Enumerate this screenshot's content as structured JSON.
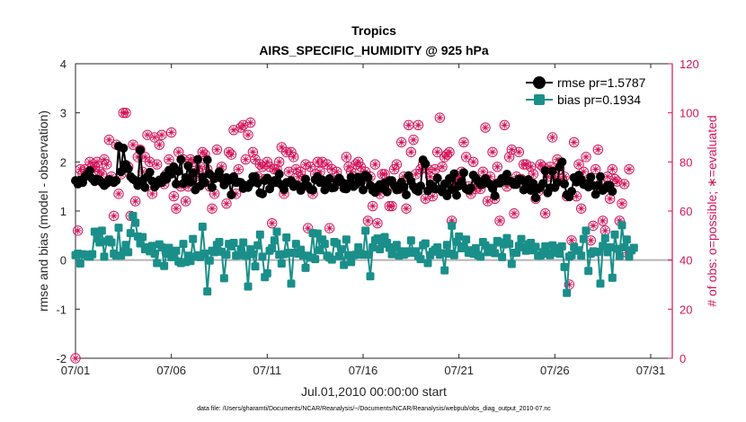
{
  "chart_data": {
    "type": "line",
    "title": "Tropics",
    "subtitle": "AIRS_SPECIFIC_HUMIDITY @ 925 hPa",
    "xlabel": "Jul.01,2010 00:00:00 start",
    "ylabel": "rmse and bias (model - observation)",
    "ylabel_right": "# of obs: o=possible; ∗=evaluated",
    "footer": "data file: /Users/gharamti/Documents/NCAR/Reanalysis/~/Documents/NCAR/Reanalysis/webpub/obs_diag_output_2010-07.nc",
    "x_range": [
      0,
      31.125
    ],
    "ylim": [
      -2,
      4
    ],
    "ylim_right": [
      0,
      120
    ],
    "x_ticks": [
      0,
      5,
      10,
      15,
      20,
      25,
      30
    ],
    "x_tick_labels": [
      "07/01",
      "07/06",
      "07/11",
      "07/16",
      "07/21",
      "07/26",
      "07/31"
    ],
    "y_ticks": [
      -2,
      -1,
      0,
      1,
      2,
      3,
      4
    ],
    "y_tick_labels": [
      "-2",
      "-1",
      "0",
      "1",
      "2",
      "3",
      "4"
    ],
    "y_ticks_right": [
      0,
      20,
      40,
      60,
      80,
      100,
      120
    ],
    "y_tick_labels_right": [
      "0",
      "20",
      "40",
      "60",
      "80",
      "100",
      "120"
    ],
    "x_step_days": 0.125,
    "colors": {
      "rmse": "#000000",
      "bias": "#1a8f8a",
      "obs": "#d4145a",
      "zero_line": "#b5b5b5"
    },
    "series": [
      {
        "name": "rmse pr=1.5787",
        "axis": "left",
        "values": [
          1.62,
          1.55,
          1.63,
          1.58,
          1.7,
          1.75,
          1.82,
          1.66,
          1.6,
          1.65,
          1.63,
          1.58,
          1.52,
          1.56,
          1.64,
          1.61,
          1.58,
          1.62,
          2.32,
          1.8,
          2.28,
          1.95,
          1.86,
          1.7,
          1.65,
          1.62,
          1.52,
          2.24,
          1.62,
          1.48,
          1.7,
          1.79,
          1.61,
          1.49,
          1.55,
          1.63,
          1.58,
          1.71,
          1.65,
          1.83,
          1.75,
          1.9,
          1.55,
          1.81,
          2.05,
          1.56,
          1.68,
          1.92,
          1.59,
          1.78,
          1.43,
          2.05,
          1.51,
          1.69,
          1.58,
          2.04,
          1.75,
          1.48,
          1.66,
          1.71,
          1.8,
          1.66,
          1.53,
          1.68,
          1.62,
          1.33,
          1.7,
          1.58,
          1.59,
          1.58,
          1.46,
          1.52,
          1.48,
          1.56,
          1.7,
          1.7,
          1.57,
          1.37,
          1.35,
          1.62,
          1.67,
          1.45,
          1.56,
          1.62,
          1.58,
          1.75,
          1.53,
          1.44,
          1.58,
          1.58,
          1.62,
          1.5,
          1.54,
          1.51,
          1.42,
          1.5,
          1.65,
          1.51,
          1.44,
          1.43,
          1.64,
          1.7,
          1.58,
          1.63,
          1.43,
          1.57,
          1.66,
          1.47,
          1.48,
          1.59,
          1.67,
          1.59,
          1.46,
          1.45,
          1.56,
          1.69,
          1.5,
          1.54,
          1.69,
          1.6,
          1.43,
          1.73,
          1.68,
          1.52,
          1.42,
          1.38,
          1.49,
          1.54,
          1.46,
          1.57,
          1.39,
          1.62,
          1.62,
          1.52,
          1.43,
          1.45,
          1.59,
          1.49,
          1.33,
          1.72,
          1.61,
          1.5,
          1.43,
          1.4,
          1.51,
          2.04,
          1.96,
          1.41,
          1.55,
          1.51,
          1.45,
          1.67,
          1.44,
          1.39,
          1.55,
          1.31,
          1.66,
          1.44,
          1.76,
          1.32,
          1.51,
          1.6,
          1.78,
          1.45,
          1.42,
          1.47,
          1.73,
          1.67,
          1.61,
          1.54,
          1.55,
          1.66,
          1.58,
          1.54,
          1.46,
          1.31,
          1.57,
          1.57,
          1.66,
          1.61,
          1.75,
          1.61,
          1.6,
          1.54,
          1.54,
          1.65,
          1.64,
          1.43,
          1.57,
          1.64,
          1.42,
          1.56,
          1.27,
          1.45,
          1.48,
          1.56,
          1.82,
          1.37,
          1.47,
          1.81,
          1.48,
          1.58,
          1.9,
          2.0,
          1.55,
          1.33,
          1.29,
          1.4,
          1.68,
          1.59,
          1.73,
          1.64,
          1.54,
          1.55,
          1.49,
          1.69,
          1.52,
          1.34,
          1.52,
          1.7,
          1.42,
          1.46,
          1.52,
          1.52,
          1.4
        ]
      },
      {
        "name": "bias pr=0.1934",
        "axis": "left",
        "values": [
          0.1,
          0.13,
          -0.07,
          0.12,
          0.11,
          0.08,
          0.07,
          0.12,
          0.58,
          0.44,
          0.36,
          0.6,
          0.07,
          0.38,
          0.42,
          0.36,
          0.13,
          0.09,
          0.66,
          0.09,
          0.18,
          0.31,
          0.16,
          0.55,
          0.9,
          0.76,
          0.48,
          0.34,
          0.47,
          0.22,
          0.26,
          0.18,
          0.29,
          0.13,
          -0.06,
          0.32,
          0.26,
          -0.12,
          0.13,
          0.25,
          0.06,
          0.1,
          0.19,
          -0.03,
          -0.06,
          0.33,
          -0.04,
          0.09,
          -0.02,
          0.43,
          0.07,
          0.1,
          0.06,
          0.68,
          0.13,
          -0.64,
          -0.01,
          0.19,
          0.16,
          0.31,
          0.37,
          0.17,
          -0.37,
          0.11,
          0.33,
          0.28,
          0.35,
          0.09,
          0.1,
          0.22,
          0.36,
          0.09,
          -0.54,
          0.22,
          0.12,
          -0.13,
          0.3,
          0.52,
          0.07,
          -0.35,
          -0.27,
          0.19,
          0.24,
          0.4,
          0.58,
          0.11,
          -0.07,
          0.12,
          0.46,
          0.15,
          -0.48,
          0.15,
          0.33,
          0.13,
          0.21,
          0.09,
          -0.16,
          0.09,
          0.05,
          0.55,
          0.02,
          0.54,
          0.2,
          0.42,
          0.33,
          0.09,
          0.05,
          0.01,
          0.37,
          0.34,
          0.08,
          0.22,
          -0.1,
          0.42,
          0.1,
          -0.04,
          0.1,
          0.11,
          0.26,
          0.13,
          0.11,
          0.6,
          0.11,
          -0.33,
          0.26,
          0.4,
          0.44,
          0.22,
          0.33,
          0.47,
          0.35,
          0.25,
          0.12,
          0.26,
          0.31,
          0.09,
          0.18,
          0.11,
          0.14,
          0.18,
          0.4,
          0.15,
          0.18,
          0.08,
          0.02,
          0.3,
          0.34,
          -0.06,
          0.1,
          0.17,
          0.21,
          0.26,
          0.11,
          0.14,
          -0.21,
          0.31,
          0.13,
          0.7,
          0.1,
          0.37,
          0.48,
          0.24,
          0.28,
          0.42,
          0.15,
          0.2,
          0.13,
          0.24,
          0.1,
          0.07,
          0.37,
          0.3,
          0.16,
          0.18,
          0.25,
          0.14,
          0.39,
          0.36,
          0.06,
          0.32,
          0.45,
          0.33,
          -0.08,
          0.15,
          0.15,
          0.29,
          0.43,
          0.26,
          0.19,
          0.32,
          0.35,
          0.2,
          0.27,
          0.09,
          0.09,
          0.16,
          0.28,
          0.13,
          0.1,
          0.3,
          0.15,
          0.25,
          0.13,
          0.28,
          -0.14,
          -0.67,
          0.07,
          0.1,
          0.27,
          0.19,
          0.2,
          0.09,
          0.43,
          0.6,
          -0.22,
          0.13,
          0.18,
          0.16,
          0.17,
          -0.48,
          0.29,
          0.45,
          0.16,
          0.26,
          -0.36,
          0.52,
          0.23,
          0.08,
          0.71,
          0.26,
          0.42,
          0.07,
          0.2,
          0.25
        ]
      },
      {
        "name": "possible",
        "axis": "right",
        "marker": "circle",
        "values": [
          0,
          52,
          77,
          75,
          77,
          75,
          80,
          78,
          78,
          80,
          76,
          75,
          81,
          79,
          89,
          74,
          58,
          87,
          67,
          75,
          100,
          100,
          78,
          58,
          87,
          64,
          82,
          85,
          76,
          82,
          91,
          80,
          67,
          90,
          79,
          87,
          91,
          71,
          75,
          81,
          92,
          66,
          61,
          84,
          70,
          81,
          64,
          70,
          81,
          80,
          74,
          76,
          78,
          84,
          83,
          77,
          70,
          61,
          67,
          85,
          74,
          78,
          73,
          63,
          84,
          83,
          93,
          67,
          77,
          94,
          95,
          81,
          91,
          96,
          84,
          81,
          74,
          79,
          78,
          73,
          80,
          78,
          55,
          77,
          77,
          80,
          86,
          67,
          84,
          76,
          84,
          82,
          77,
          74,
          76,
          73,
          79,
          53,
          78,
          67,
          75,
          80,
          76,
          80,
          72,
          79,
          53,
          77,
          72,
          76,
          73,
          71,
          71,
          82,
          78,
          76,
          74,
          79,
          80,
          78,
          73,
          76,
          56,
          74,
          62,
          79,
          55,
          67,
          75,
          75,
          69,
          62,
          62,
          77,
          79,
          69,
          88,
          74,
          61,
          95,
          84,
          89,
          75,
          95,
          77,
          79,
          65,
          77,
          74,
          66,
          77,
          84,
          98,
          78,
          82,
          83,
          84,
          56,
          71,
          73,
          74,
          76,
          88,
          82,
          70,
          67,
          80,
          69,
          72,
          69,
          76,
          94,
          64,
          74,
          84,
          65,
          78,
          56,
          73,
          95,
          70,
          82,
          85,
          59,
          74,
          84,
          73,
          79,
          79,
          70,
          78,
          75,
          65,
          68,
          79,
          78,
          59,
          74,
          78,
          90,
          74,
          81,
          77,
          73,
          74,
          66,
          30,
          48,
          88,
          66,
          79,
          61,
          76,
          82,
          72,
          48,
          54,
          77,
          85,
          71,
          56,
          52,
          74,
          65,
          77,
          73,
          72,
          56,
          63,
          71,
          43,
          77
        ]
      }
    ],
    "legend": {
      "position": "top-right",
      "entries": [
        "rmse pr=1.5787",
        "bias pr=0.1934"
      ]
    }
  }
}
